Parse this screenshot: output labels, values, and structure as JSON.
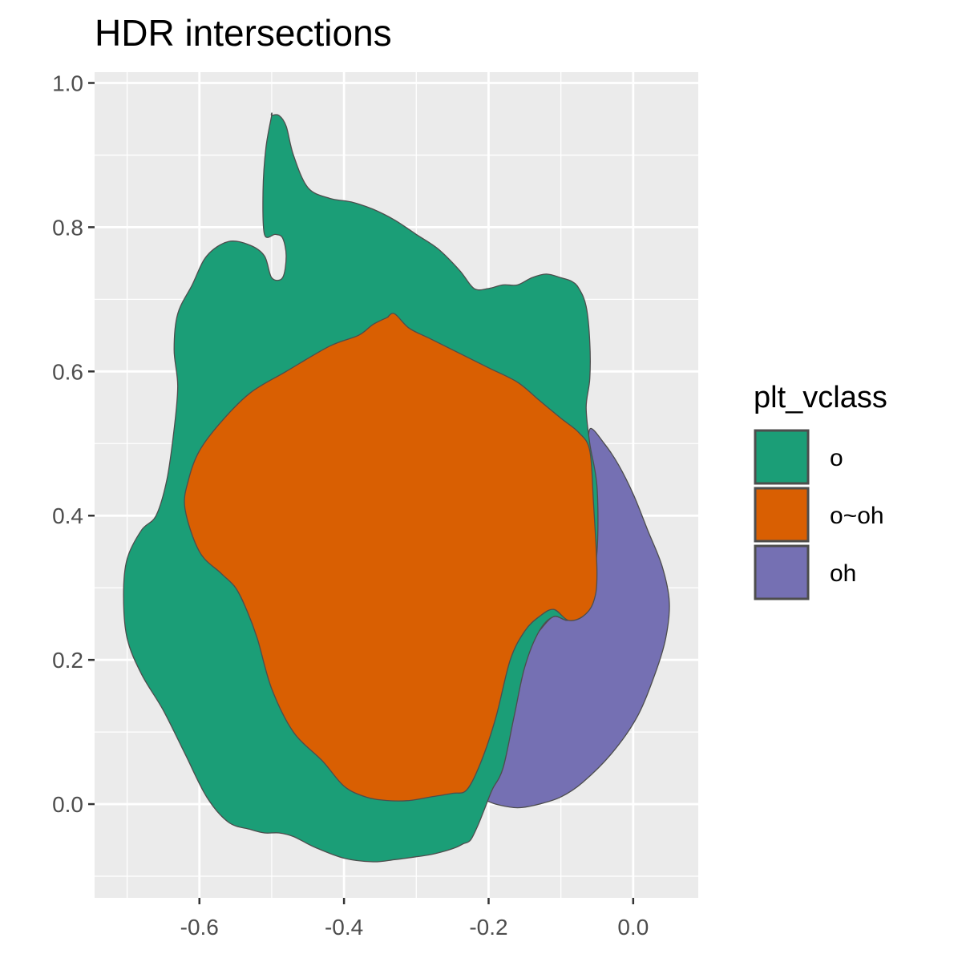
{
  "title": "HDR intersections",
  "chart_data": {
    "type": "area",
    "title": "HDR intersections",
    "xlabel": "",
    "ylabel": "",
    "xlim": [
      -0.745,
      0.09
    ],
    "ylim": [
      -0.13,
      1.015
    ],
    "x_ticks": [
      -0.6,
      -0.4,
      -0.2,
      0.0
    ],
    "x_tick_labels": [
      "-0.6",
      "-0.4",
      "-0.2",
      "0.0"
    ],
    "y_ticks": [
      0.0,
      0.2,
      0.4,
      0.6,
      0.8,
      1.0
    ],
    "y_tick_labels": [
      "0.0",
      "0.2",
      "0.4",
      "0.6",
      "0.8",
      "1.0"
    ],
    "grid": true,
    "legend": {
      "title": "plt_vclass",
      "position": "right",
      "entries": [
        {
          "label": "o",
          "color": "#1B9E77"
        },
        {
          "label": "o~oh",
          "color": "#D95F02"
        },
        {
          "label": "oh",
          "color": "#7570B3"
        }
      ]
    },
    "series": [
      {
        "name": "oh",
        "color": "#7570B3",
        "x": [
          -0.06,
          -0.04,
          -0.02,
          0.0,
          0.02,
          0.04,
          0.05,
          0.045,
          0.03,
          0.005,
          -0.03,
          -0.07,
          -0.1,
          -0.13,
          -0.16,
          -0.19,
          -0.21,
          -0.23,
          -0.215,
          -0.19,
          -0.17,
          -0.155,
          -0.145,
          -0.13,
          -0.11,
          -0.09,
          -0.075,
          -0.06,
          -0.055,
          -0.06
        ],
        "y": [
          0.52,
          0.5,
          0.47,
          0.43,
          0.38,
          0.33,
          0.28,
          0.23,
          0.18,
          0.12,
          0.07,
          0.03,
          0.01,
          0.0,
          -0.005,
          0.0,
          0.008,
          0.015,
          0.05,
          0.09,
          0.13,
          0.19,
          0.22,
          0.24,
          0.26,
          0.255,
          0.27,
          0.31,
          0.39,
          0.47
        ]
      },
      {
        "name": "o",
        "color": "#1B9E77",
        "x": [
          -0.5,
          -0.49,
          -0.48,
          -0.47,
          -0.45,
          -0.42,
          -0.39,
          -0.36,
          -0.33,
          -0.3,
          -0.27,
          -0.24,
          -0.22,
          -0.2,
          -0.18,
          -0.16,
          -0.14,
          -0.12,
          -0.1,
          -0.085,
          -0.075,
          -0.065,
          -0.06,
          -0.06,
          -0.065,
          -0.06,
          -0.05,
          -0.05,
          -0.06,
          -0.075,
          -0.09,
          -0.11,
          -0.13,
          -0.15,
          -0.165,
          -0.18,
          -0.195,
          -0.205,
          -0.215,
          -0.225,
          -0.235,
          -0.245,
          -0.26,
          -0.28,
          -0.3,
          -0.33,
          -0.36,
          -0.4,
          -0.44,
          -0.47,
          -0.49,
          -0.51,
          -0.53,
          -0.56,
          -0.59,
          -0.62,
          -0.65,
          -0.68,
          -0.7,
          -0.705,
          -0.7,
          -0.68,
          -0.66,
          -0.645,
          -0.635,
          -0.63,
          -0.635,
          -0.63,
          -0.61,
          -0.59,
          -0.56,
          -0.53,
          -0.51,
          -0.5,
          -0.485,
          -0.48,
          -0.485,
          -0.495,
          -0.51,
          -0.512,
          -0.508,
          -0.5
        ],
        "y": [
          0.955,
          0.955,
          0.94,
          0.9,
          0.855,
          0.84,
          0.835,
          0.825,
          0.81,
          0.79,
          0.77,
          0.74,
          0.715,
          0.715,
          0.72,
          0.72,
          0.73,
          0.735,
          0.73,
          0.725,
          0.715,
          0.69,
          0.64,
          0.59,
          0.55,
          0.5,
          0.44,
          0.35,
          0.3,
          0.27,
          0.255,
          0.26,
          0.24,
          0.19,
          0.12,
          0.05,
          0.02,
          -0.005,
          -0.03,
          -0.05,
          -0.055,
          -0.06,
          -0.065,
          -0.07,
          -0.073,
          -0.077,
          -0.08,
          -0.075,
          -0.06,
          -0.045,
          -0.04,
          -0.04,
          -0.035,
          -0.025,
          0.01,
          0.07,
          0.13,
          0.18,
          0.23,
          0.29,
          0.34,
          0.38,
          0.4,
          0.45,
          0.52,
          0.58,
          0.63,
          0.68,
          0.72,
          0.76,
          0.78,
          0.775,
          0.76,
          0.73,
          0.73,
          0.76,
          0.785,
          0.79,
          0.79,
          0.85,
          0.91,
          0.955
        ]
      },
      {
        "name": "o~oh",
        "color": "#D95F02",
        "x": [
          -0.34,
          -0.33,
          -0.31,
          -0.28,
          -0.24,
          -0.2,
          -0.16,
          -0.13,
          -0.1,
          -0.075,
          -0.06,
          -0.055,
          -0.05,
          -0.055,
          -0.07,
          -0.09,
          -0.11,
          -0.13,
          -0.15,
          -0.17,
          -0.19,
          -0.21,
          -0.23,
          -0.25,
          -0.28,
          -0.31,
          -0.34,
          -0.37,
          -0.4,
          -0.43,
          -0.47,
          -0.5,
          -0.52,
          -0.535,
          -0.55,
          -0.57,
          -0.6,
          -0.62,
          -0.615,
          -0.6,
          -0.57,
          -0.53,
          -0.48,
          -0.42,
          -0.38,
          -0.36,
          -0.34
        ],
        "y": [
          0.675,
          0.68,
          0.66,
          0.645,
          0.625,
          0.605,
          0.585,
          0.56,
          0.535,
          0.515,
          0.49,
          0.42,
          0.32,
          0.28,
          0.26,
          0.255,
          0.27,
          0.26,
          0.24,
          0.2,
          0.12,
          0.06,
          0.02,
          0.015,
          0.01,
          0.005,
          0.005,
          0.01,
          0.025,
          0.06,
          0.1,
          0.16,
          0.23,
          0.27,
          0.3,
          0.32,
          0.35,
          0.41,
          0.45,
          0.49,
          0.53,
          0.57,
          0.6,
          0.635,
          0.65,
          0.665,
          0.675
        ]
      }
    ]
  }
}
